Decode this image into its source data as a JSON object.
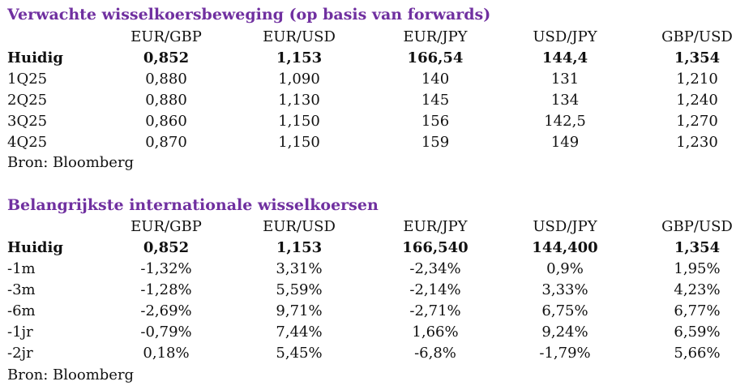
{
  "colors": {
    "title": "#7030a0",
    "text": "#111111"
  },
  "table1": {
    "title": "Verwachte wisselkoersbeweging (op basis van forwards)",
    "headers": [
      "EUR/GBP",
      "EUR/USD",
      "EUR/JPY",
      "USD/JPY",
      "GBP/USD"
    ],
    "rows": [
      {
        "label": "Huidig",
        "bold": true,
        "values": [
          "0,852",
          "1,153",
          "166,54",
          "144,4",
          "1,354"
        ]
      },
      {
        "label": "1Q25",
        "bold": false,
        "values": [
          "0,880",
          "1,090",
          "140",
          "131",
          "1,210"
        ]
      },
      {
        "label": "2Q25",
        "bold": false,
        "values": [
          "0,880",
          "1,130",
          "145",
          "134",
          "1,240"
        ]
      },
      {
        "label": "3Q25",
        "bold": false,
        "values": [
          "0,860",
          "1,150",
          "156",
          "142,5",
          "1,270"
        ]
      },
      {
        "label": "4Q25",
        "bold": false,
        "values": [
          "0,870",
          "1,150",
          "159",
          "149",
          "1,230"
        ]
      }
    ],
    "source": "Bron: Bloomberg"
  },
  "table2": {
    "title": "Belangrijkste internationale wisselkoersen",
    "headers": [
      "EUR/GBP",
      "EUR/USD",
      "EUR/JPY",
      "USD/JPY",
      "GBP/USD"
    ],
    "rows": [
      {
        "label": "Huidig",
        "bold": true,
        "values": [
          "0,852",
          "1,153",
          "166,540",
          "144,400",
          "1,354"
        ]
      },
      {
        "label": "-1m",
        "bold": false,
        "values": [
          "-1,32%",
          "3,31%",
          "-2,34%",
          "0,9%",
          "1,95%"
        ]
      },
      {
        "label": "-3m",
        "bold": false,
        "values": [
          "-1,28%",
          "5,59%",
          "-2,14%",
          "3,33%",
          "4,23%"
        ]
      },
      {
        "label": "-6m",
        "bold": false,
        "values": [
          "-2,69%",
          "9,71%",
          "-2,71%",
          "6,75%",
          "6,77%"
        ]
      },
      {
        "label": "-1jr",
        "bold": false,
        "values": [
          "-0,79%",
          "7,44%",
          "1,66%",
          "9,24%",
          "6,59%"
        ]
      },
      {
        "label": "-2jr",
        "bold": false,
        "values": [
          "0,18%",
          "5,45%",
          "-6,8%",
          "-1,79%",
          "5,66%"
        ]
      }
    ],
    "source": "Bron: Bloomberg"
  }
}
